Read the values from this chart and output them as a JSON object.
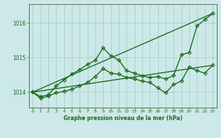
{
  "bg_color": "#cce8e8",
  "grid_color": "#aacccc",
  "line_color": "#1a6b1a",
  "marker_color": "#1a6b1a",
  "xlabel": "Graphe pression niveau de la mer (hPa)",
  "xlim": [
    -0.5,
    23.5
  ],
  "ylim": [
    1013.55,
    1016.55
  ],
  "yticks": [
    1014,
    1015,
    1016
  ],
  "xticks": [
    0,
    1,
    2,
    3,
    4,
    5,
    6,
    7,
    8,
    9,
    10,
    11,
    12,
    13,
    14,
    15,
    16,
    17,
    18,
    19,
    20,
    21,
    22,
    23
  ],
  "series": [
    {
      "x": [
        0,
        1,
        2,
        3,
        4,
        5,
        6,
        7,
        8,
        9,
        10,
        11,
        12,
        13,
        14,
        15,
        16,
        17,
        18,
        19,
        20,
        21,
        22,
        23
      ],
      "y": [
        1014.0,
        1013.87,
        1013.92,
        1014.18,
        1014.35,
        1014.52,
        1014.65,
        1014.8,
        1014.92,
        1015.28,
        1015.05,
        1014.93,
        1014.62,
        1014.55,
        1014.47,
        1014.42,
        1014.45,
        1014.38,
        1014.48,
        1015.08,
        1015.15,
        1015.92,
        1016.1,
        1016.28
      ],
      "marker": "D",
      "linewidth": 1.0,
      "markersize": 2.5
    },
    {
      "x": [
        0,
        1,
        2,
        3,
        4,
        5,
        6,
        7,
        8,
        9,
        10,
        11,
        12,
        13,
        14,
        15,
        16,
        17,
        18,
        19,
        20,
        21,
        22,
        23
      ],
      "y": [
        1014.0,
        1013.82,
        1013.88,
        1013.98,
        1014.02,
        1014.08,
        1014.18,
        1014.28,
        1014.45,
        1014.68,
        1014.55,
        1014.52,
        1014.42,
        1014.38,
        1014.32,
        1014.28,
        1014.12,
        1013.98,
        1014.22,
        1014.32,
        1014.72,
        1014.62,
        1014.55,
        1014.78
      ],
      "marker": "D",
      "linewidth": 1.0,
      "markersize": 2.5
    },
    {
      "x": [
        0,
        23
      ],
      "y": [
        1014.0,
        1016.28
      ],
      "marker": null,
      "linewidth": 1.0,
      "markersize": 0
    },
    {
      "x": [
        0,
        23
      ],
      "y": [
        1014.0,
        1014.78
      ],
      "marker": null,
      "linewidth": 1.0,
      "markersize": 0
    }
  ]
}
